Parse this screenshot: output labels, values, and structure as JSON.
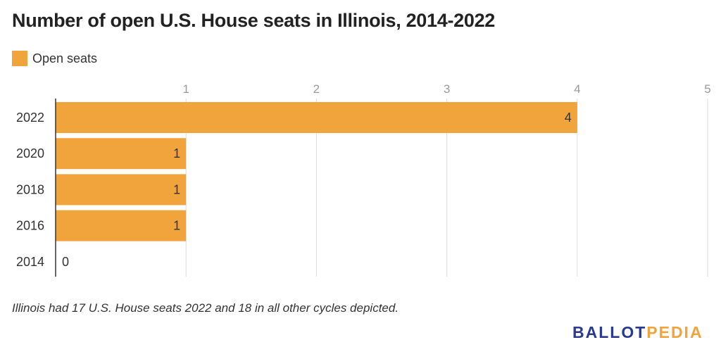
{
  "title": "Number of open U.S. House seats in Illinois, 2014-2022",
  "legend": {
    "label": "Open seats",
    "color": "#f0a43b"
  },
  "note": "Illinois had 17 U.S. House seats 2022 and 18 in all other cycles depicted.",
  "logo": {
    "part1": "BALLOT",
    "part2": "PEDIA",
    "color1": "#2b3a8c",
    "color2": "#f0a43b"
  },
  "chart_data": {
    "type": "bar",
    "orientation": "horizontal",
    "categories": [
      "2022",
      "2020",
      "2018",
      "2016",
      "2014"
    ],
    "series": [
      {
        "name": "Open seats",
        "values": [
          4,
          1,
          1,
          1,
          0
        ],
        "color": "#f0a43b"
      }
    ],
    "xlim": [
      0,
      5
    ],
    "xticks": [
      1,
      2,
      3,
      4,
      5
    ],
    "grid": true,
    "legend_position": "top-left",
    "data_labels": true
  }
}
